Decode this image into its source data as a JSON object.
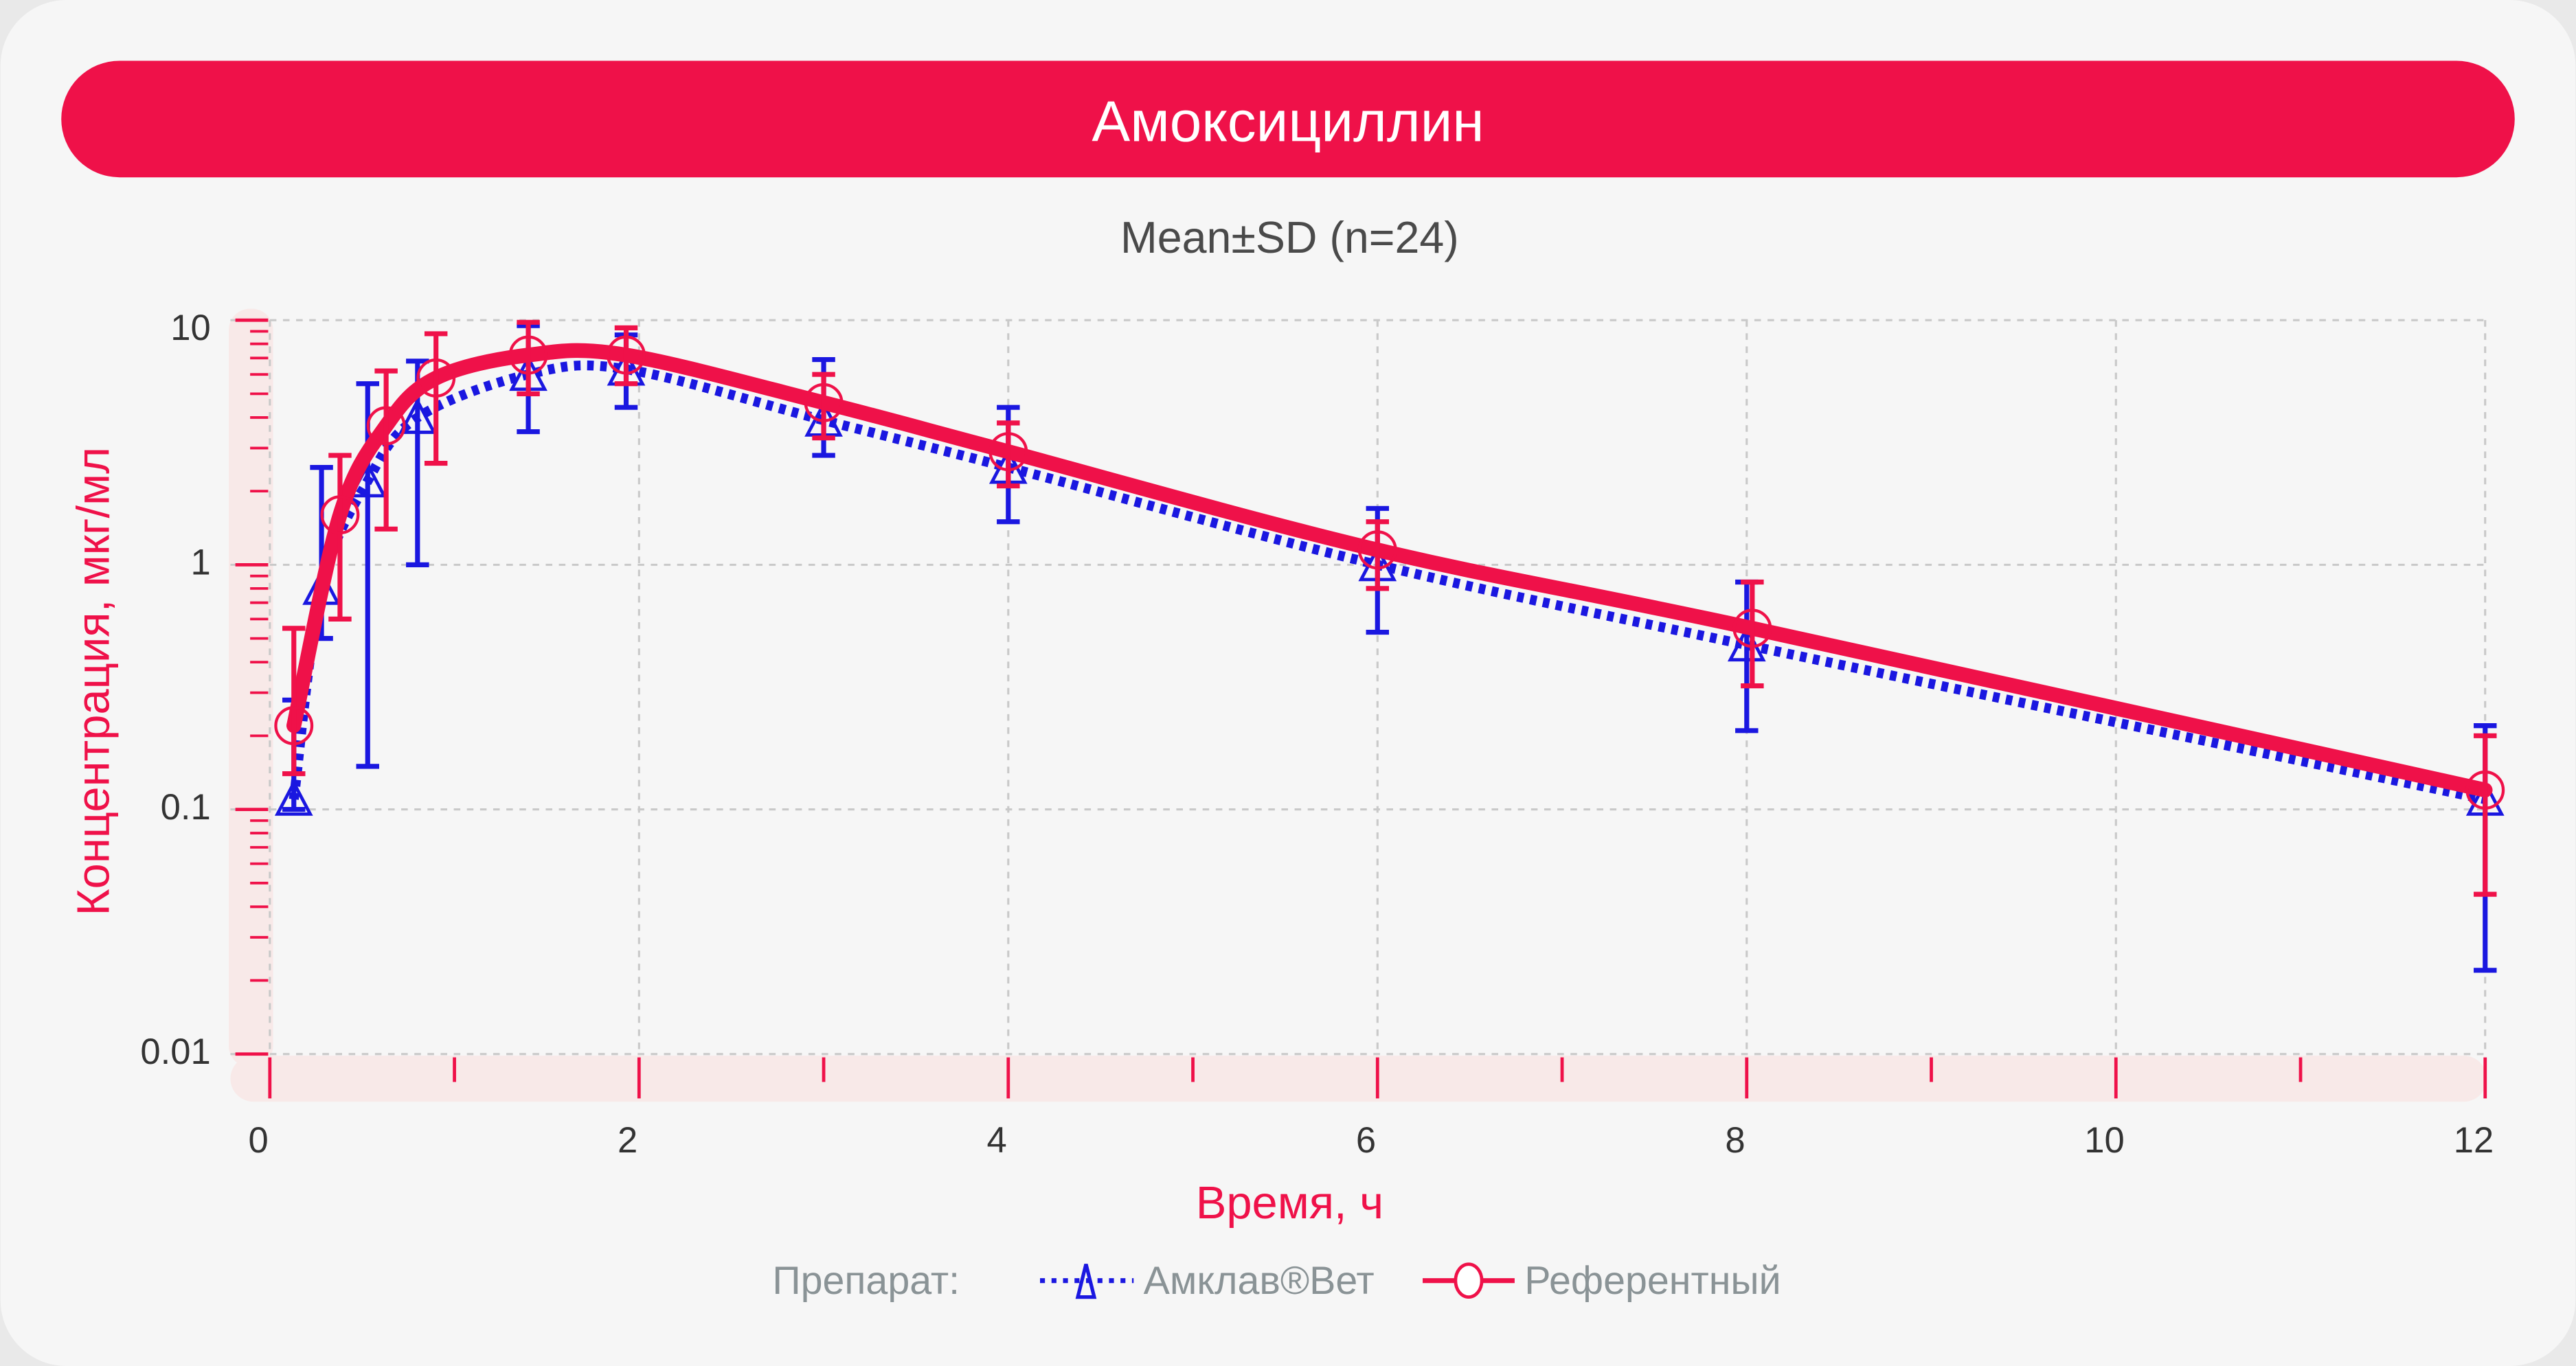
{
  "header": {
    "title": "Амоксициллин"
  },
  "colors": {
    "accent": "#ef1149",
    "test": "#1a17e0",
    "card": "#f6f6f6",
    "band": "#f8e9e8",
    "legend_text": "#8a9396"
  },
  "chart_data": {
    "type": "line",
    "title": "Амоксициллин",
    "subtitle": "Mean±SD (n=24)",
    "xlabel": "Время, ч",
    "ylabel": "Концентрация, мкг/мл",
    "xlim": [
      0,
      12
    ],
    "ylim": [
      0.01,
      10
    ],
    "yscale": "log",
    "grid": true,
    "x_ticks": [
      0,
      2,
      4,
      6,
      8,
      10,
      12
    ],
    "y_ticks": [
      0.01,
      0.1,
      1,
      10
    ],
    "y_tick_labels": [
      "0.01",
      "0.1",
      "1",
      "10"
    ],
    "x_tick_labels": [
      "0",
      "2",
      "4",
      "6",
      "8",
      "10",
      "12"
    ],
    "legend": {
      "title": "Препарат:",
      "placement": "bottom"
    },
    "series": [
      {
        "name": "Амклав®Вет",
        "marker": "triangle",
        "line": "dotted",
        "color": "#1a17e0",
        "x": [
          0.13,
          0.28,
          0.53,
          0.8,
          1.4,
          1.93,
          3,
          4,
          6,
          8,
          12
        ],
        "y": [
          0.11,
          0.8,
          2.2,
          4.0,
          6.0,
          6.3,
          3.9,
          2.5,
          1.0,
          0.47,
          0.11
        ],
        "sd_low": [
          0.1,
          0.5,
          0.15,
          1.0,
          3.5,
          4.4,
          2.8,
          1.5,
          0.53,
          0.21,
          0.022
        ],
        "sd_high": [
          0.28,
          2.5,
          5.5,
          6.8,
          9.5,
          8.7,
          6.9,
          4.4,
          1.7,
          0.85,
          0.22
        ]
      },
      {
        "name": "Референтный",
        "marker": "circle",
        "line": "solid",
        "color": "#ef1149",
        "x": [
          0.13,
          0.38,
          0.63,
          0.9,
          1.4,
          1.93,
          3,
          4,
          6,
          8.03,
          12
        ],
        "y": [
          0.22,
          1.6,
          3.7,
          5.8,
          7.2,
          7.2,
          4.6,
          2.9,
          1.15,
          0.55,
          0.12
        ],
        "sd_low": [
          0.14,
          0.6,
          1.4,
          2.6,
          5.0,
          5.5,
          3.3,
          2.1,
          0.8,
          0.32,
          0.045
        ],
        "sd_high": [
          0.55,
          2.8,
          6.2,
          8.8,
          9.8,
          9.3,
          6.0,
          3.8,
          1.5,
          0.85,
          0.2
        ]
      }
    ]
  }
}
